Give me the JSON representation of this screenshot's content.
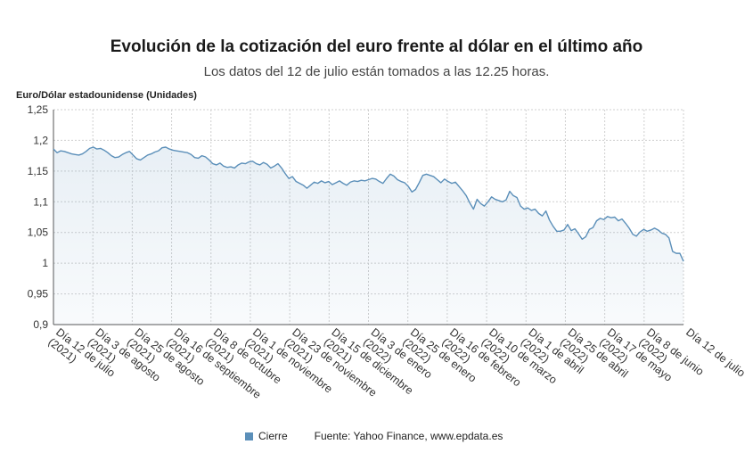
{
  "chart_data": {
    "type": "area",
    "title": "Evolución de la cotización del euro frente al dólar en el último año",
    "subtitle": "Los datos del 12 de julio están tomados a las 12.25 horas.",
    "ylabel": "Euro/Dólar estadounidense (Unidades)",
    "xlabel": "",
    "ylim": [
      0.9,
      1.25
    ],
    "yticks": [
      "1,25",
      "1,2",
      "1,15",
      "1,1",
      "1,05",
      "1",
      "0,95",
      "0,9"
    ],
    "ytick_values": [
      1.25,
      1.2,
      1.15,
      1.1,
      1.05,
      1.0,
      0.95,
      0.9
    ],
    "xticks": [
      {
        "line1": "Día 12 de julio",
        "line2": "(2021)"
      },
      {
        "line1": "Día 3 de agosto",
        "line2": "(2021)"
      },
      {
        "line1": "Día 25 de agosto",
        "line2": "(2021)"
      },
      {
        "line1": "Día 16 de septiembre",
        "line2": "(2021)"
      },
      {
        "line1": "Día 8 de octubre",
        "line2": "(2021)"
      },
      {
        "line1": "Día 1 de noviembre",
        "line2": "(2021)"
      },
      {
        "line1": "Día 23 de noviembre",
        "line2": "(2021)"
      },
      {
        "line1": "Día 15 de diciembre",
        "line2": "(2021)"
      },
      {
        "line1": "Día 3 de enero",
        "line2": "(2022)"
      },
      {
        "line1": "Día 25 de enero",
        "line2": "(2022)"
      },
      {
        "line1": "Día 16 de febrero",
        "line2": "(2022)"
      },
      {
        "line1": "Día 10 de marzo",
        "line2": "(2022)"
      },
      {
        "line1": "Día 1 de abril",
        "line2": "(2022)"
      },
      {
        "line1": "Día 25 de abril",
        "line2": "(2022)"
      },
      {
        "line1": "Día 17 de mayo",
        "line2": "(2022)"
      },
      {
        "line1": "Día 8 de junio",
        "line2": "(2022)"
      },
      {
        "line1": "Día 12 de julio",
        "line2": ""
      }
    ],
    "grid": true,
    "legend_position": "bottom",
    "series": [
      {
        "name": "Cierre",
        "color": "#5b8fb9",
        "values": [
          1.186,
          1.18,
          1.183,
          1.182,
          1.18,
          1.178,
          1.177,
          1.176,
          1.178,
          1.182,
          1.187,
          1.189,
          1.186,
          1.187,
          1.184,
          1.18,
          1.175,
          1.172,
          1.173,
          1.177,
          1.18,
          1.182,
          1.176,
          1.17,
          1.168,
          1.172,
          1.176,
          1.178,
          1.181,
          1.183,
          1.188,
          1.189,
          1.186,
          1.184,
          1.183,
          1.182,
          1.181,
          1.18,
          1.177,
          1.172,
          1.171,
          1.175,
          1.173,
          1.168,
          1.162,
          1.16,
          1.163,
          1.158,
          1.156,
          1.157,
          1.155,
          1.16,
          1.163,
          1.162,
          1.165,
          1.166,
          1.162,
          1.16,
          1.164,
          1.161,
          1.155,
          1.158,
          1.162,
          1.155,
          1.146,
          1.138,
          1.141,
          1.133,
          1.13,
          1.127,
          1.122,
          1.127,
          1.132,
          1.13,
          1.134,
          1.131,
          1.133,
          1.128,
          1.131,
          1.134,
          1.13,
          1.127,
          1.132,
          1.134,
          1.133,
          1.135,
          1.134,
          1.136,
          1.138,
          1.137,
          1.133,
          1.13,
          1.138,
          1.145,
          1.142,
          1.136,
          1.133,
          1.131,
          1.125,
          1.116,
          1.12,
          1.131,
          1.143,
          1.145,
          1.143,
          1.141,
          1.136,
          1.131,
          1.137,
          1.133,
          1.13,
          1.132,
          1.125,
          1.118,
          1.11,
          1.098,
          1.088,
          1.104,
          1.097,
          1.093,
          1.1,
          1.108,
          1.104,
          1.102,
          1.1,
          1.103,
          1.117,
          1.11,
          1.107,
          1.093,
          1.088,
          1.09,
          1.086,
          1.088,
          1.081,
          1.077,
          1.085,
          1.07,
          1.06,
          1.052,
          1.052,
          1.054,
          1.063,
          1.053,
          1.056,
          1.048,
          1.039,
          1.043,
          1.055,
          1.058,
          1.069,
          1.073,
          1.071,
          1.076,
          1.074,
          1.075,
          1.069,
          1.072,
          1.065,
          1.057,
          1.047,
          1.044,
          1.051,
          1.055,
          1.052,
          1.054,
          1.057,
          1.054,
          1.049,
          1.047,
          1.041,
          1.019,
          1.016,
          1.016,
          1.003
        ]
      }
    ]
  },
  "legend": {
    "label": "Cierre",
    "source": "Fuente: Yahoo Finance, www.epdata.es"
  }
}
